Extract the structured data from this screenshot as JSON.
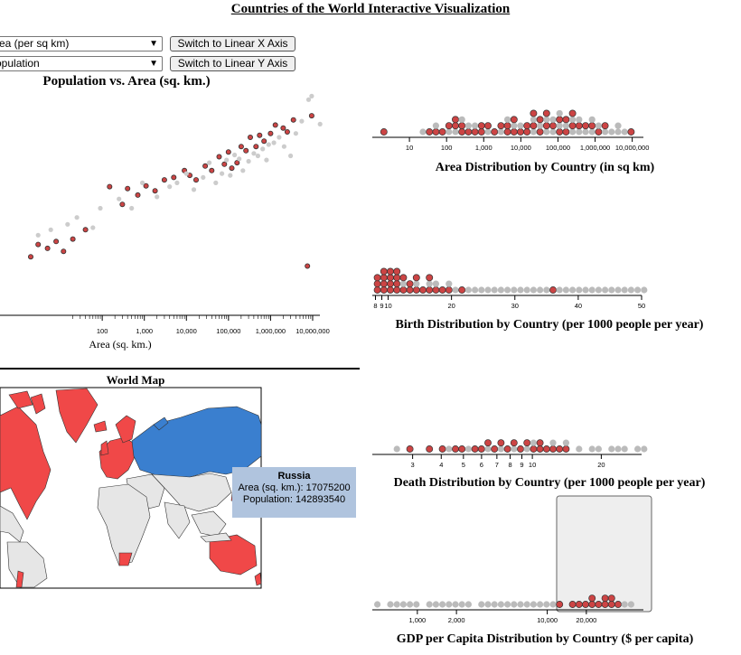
{
  "page_title": "Countries of the World Interactive Visualization",
  "controls": {
    "x_select": "rea (per sq km)",
    "y_select": "opulation",
    "x_button": "Switch to Linear X Axis",
    "y_button": "Switch to Linear Y Axis"
  },
  "scatter": {
    "title": "Population vs. Area (sq. km.)",
    "xlabel": "Area (sq. km.)",
    "x_ticks": [
      "100",
      "1,000",
      "10,000",
      "100,000",
      "1,000,000",
      "10,000,000"
    ]
  },
  "map": {
    "title": "World Map",
    "tooltip": {
      "name": "Russia",
      "area_line": "Area (sq. km.): 17075200",
      "pop_line": "Population: 142893540"
    },
    "colors": {
      "selected": "#f04848",
      "highlight": "#3a7fcf",
      "default": "#e6e6e6"
    }
  },
  "chart_data": [
    {
      "type": "scatter",
      "title": "Population vs. Area (sq. km.)",
      "xlabel": "Area (sq. km.)",
      "ylabel": "",
      "x_scale": "log",
      "y_scale": "log",
      "series": [
        {
          "name": "",
          "color": "#cc4444",
          "points": [
            [
              2,
              8000
            ],
            [
              3,
              20000
            ],
            [
              5,
              15000
            ],
            [
              8,
              25000
            ],
            [
              12,
              12000
            ],
            [
              20,
              30000
            ],
            [
              40,
              60000
            ],
            [
              150,
              1500000
            ],
            [
              300,
              400000
            ],
            [
              400,
              1300000
            ],
            [
              700,
              800000
            ],
            [
              1100,
              1600000
            ],
            [
              1800,
              1100000
            ],
            [
              3000,
              2500000
            ],
            [
              5000,
              3000000
            ],
            [
              9000,
              5000000
            ],
            [
              12000,
              3500000
            ],
            [
              17000,
              2500000
            ],
            [
              28000,
              7000000
            ],
            [
              40000,
              5000000
            ],
            [
              60000,
              14000000
            ],
            [
              80000,
              8000000
            ],
            [
              100000,
              20000000
            ],
            [
              120000,
              6000000
            ],
            [
              160000,
              9000000
            ],
            [
              200000,
              30000000
            ],
            [
              260000,
              22000000
            ],
            [
              330000,
              60000000
            ],
            [
              450000,
              30000000
            ],
            [
              550000,
              70000000
            ],
            [
              700000,
              45000000
            ],
            [
              1000000,
              80000000
            ],
            [
              1300000,
              150000000
            ],
            [
              2000000,
              120000000
            ],
            [
              2500000,
              90000000
            ],
            [
              3500000,
              220000000
            ],
            [
              7500000,
              4000
            ],
            [
              9500000,
              300000000
            ]
          ]
        },
        {
          "name": "",
          "color": "#cccccc",
          "points": [
            [
              3,
              40000
            ],
            [
              6,
              60000
            ],
            [
              15,
              90000
            ],
            [
              25,
              150000
            ],
            [
              60,
              70000
            ],
            [
              90,
              300000
            ],
            [
              250,
              600000
            ],
            [
              500,
              300000
            ],
            [
              900,
              2000000
            ],
            [
              2000,
              700000
            ],
            [
              4000,
              1500000
            ],
            [
              6000,
              2000000
            ],
            [
              10000,
              4000000
            ],
            [
              15000,
              1200000
            ],
            [
              25000,
              3000000
            ],
            [
              35000,
              9000000
            ],
            [
              50000,
              2000000
            ],
            [
              70000,
              4000000
            ],
            [
              90000,
              11000000
            ],
            [
              110000,
              3500000
            ],
            [
              140000,
              16000000
            ],
            [
              180000,
              12000000
            ],
            [
              220000,
              5000000
            ],
            [
              300000,
              10000000
            ],
            [
              400000,
              18000000
            ],
            [
              500000,
              15000000
            ],
            [
              650000,
              25000000
            ],
            [
              800000,
              11000000
            ],
            [
              900000,
              35000000
            ],
            [
              1200000,
              40000000
            ],
            [
              1600000,
              60000000
            ],
            [
              2100000,
              30000000
            ],
            [
              3000000,
              15000000
            ],
            [
              4000000,
              80000000
            ],
            [
              5500000,
              200000000
            ],
            [
              8000000,
              1000000000
            ],
            [
              9500000,
              1300000000
            ],
            [
              15000000,
              160000000
            ]
          ]
        }
      ]
    },
    {
      "type": "scatter",
      "title": "Area Distribution by Country (in sq km)",
      "xlabel": "",
      "ylabel": "",
      "x_scale": "log",
      "x_ticks": [
        "10",
        "100",
        "1,000",
        "10,000",
        "100,000",
        "1,000,000",
        "10,000,000"
      ],
      "series": [
        {
          "name": "",
          "color": "#cc4444",
          "values": [
            2,
            40,
            50,
            80,
            120,
            160,
            200,
            250,
            300,
            380,
            500,
            800,
            1000,
            1500,
            2000,
            3000,
            4000,
            5000,
            6000,
            8000,
            10000,
            12000,
            15000,
            20000,
            25000,
            30000,
            40000,
            50000,
            60000,
            80000,
            100000,
            120000,
            150000,
            200000,
            250000,
            300000,
            400000,
            600000,
            800000,
            1100000,
            2000000,
            9500000
          ]
        },
        {
          "name": "",
          "color": "#bbbbbb",
          "values": [
            20,
            60,
            100,
            150,
            300,
            400,
            700,
            1200,
            2500,
            5000,
            7000,
            11000,
            18000,
            22000,
            35000,
            45000,
            55000,
            70000,
            90000,
            110000,
            130000,
            180000,
            220000,
            280000,
            350000,
            450000,
            500000,
            700000,
            900000,
            1300000,
            1600000,
            2500000,
            3500000,
            5000000,
            7500000
          ]
        }
      ]
    },
    {
      "type": "scatter",
      "title": "Birth Distribution by Country (per 1000 people per year)",
      "xlabel": "",
      "ylabel": "",
      "x_ticks": [
        "8",
        "9",
        "10",
        "20",
        "30",
        "40",
        "50"
      ],
      "series": [
        {
          "name": "",
          "color": "#cc4444",
          "values": [
            8.2,
            8.5,
            8.8,
            9,
            9.2,
            9.5,
            9.8,
            10,
            10.2,
            10.5,
            10.8,
            11,
            11.3,
            11.5,
            11.8,
            12,
            12.5,
            13,
            13.5,
            14,
            14.5,
            15,
            16,
            17,
            18,
            19,
            20,
            22,
            36
          ]
        },
        {
          "name": "",
          "color": "#bbbbbb",
          "values": [
            12,
            14,
            16,
            18,
            20,
            21,
            23,
            24,
            25,
            26,
            27,
            28,
            29,
            30,
            31,
            32,
            33,
            34,
            35,
            37,
            38,
            39,
            40,
            41,
            42,
            43,
            44,
            45,
            46,
            47,
            48,
            49,
            50
          ]
        }
      ]
    },
    {
      "type": "scatter",
      "title": "Death Distribution by Country (per 1000 people per year)",
      "xlabel": "",
      "ylabel": "",
      "x_ticks": [
        "3",
        "4",
        "5",
        "6",
        "7",
        "8",
        "9",
        "10",
        "20"
      ],
      "series": [
        {
          "name": "",
          "color": "#cc4444",
          "values": [
            3,
            3.5,
            4,
            4.5,
            5,
            5.5,
            6,
            6.5,
            7,
            7.5,
            8,
            8.5,
            9,
            9.5,
            10,
            10.5,
            11,
            11.5,
            12,
            13,
            14
          ]
        },
        {
          "name": "",
          "color": "#bbbbbb",
          "values": [
            2.5,
            4.2,
            5.2,
            6.2,
            7.2,
            8.2,
            9.2,
            10.2,
            12,
            14,
            16,
            18,
            20,
            22,
            24,
            26,
            28,
            30
          ]
        }
      ]
    },
    {
      "type": "scatter",
      "title": "GDP per Capita Distribution by Country ($ per capita)",
      "xlabel": "",
      "ylabel": "",
      "x_scale": "log",
      "x_ticks": [
        "1,000",
        "2,000",
        "10,000",
        "20,000"
      ],
      "brush_range": [
        12000,
        50000
      ],
      "series": [
        {
          "name": "",
          "color": "#cc4444",
          "values": [
            13000,
            15000,
            17000,
            19000,
            21000,
            23000,
            25000,
            27000,
            29000,
            31000,
            33000,
            36000
          ]
        },
        {
          "name": "",
          "color": "#bbbbbb",
          "values": [
            500,
            600,
            700,
            800,
            900,
            1000,
            1200,
            1400,
            1600,
            1800,
            2000,
            2300,
            2600,
            3000,
            3500,
            4000,
            4500,
            5000,
            5500,
            6000,
            7000,
            8000,
            9000,
            10000,
            11000,
            40000,
            45000
          ]
        }
      ]
    }
  ],
  "dot_titles": {
    "area": "Area Distribution by Country (in sq km)",
    "birth": "Birth Distribution by Country (per 1000 people per year)",
    "death": "Death Distribution by Country (per 1000 people per year)",
    "gdp": "GDP per Capita Distribution by Country ($ per capita)"
  },
  "area_ticks": [
    "10",
    "100",
    "1,000",
    "10,000",
    "100,000",
    "1,000,000",
    "10,000,000"
  ],
  "birth_ticks": [
    "8",
    "9",
    "10",
    "20",
    "30",
    "40",
    "50"
  ],
  "death_ticks": [
    "3",
    "4",
    "5",
    "6",
    "7",
    "8",
    "9",
    "10",
    "20"
  ],
  "gdp_ticks": [
    "1,000",
    "2,000",
    "10,000",
    "20,000"
  ]
}
